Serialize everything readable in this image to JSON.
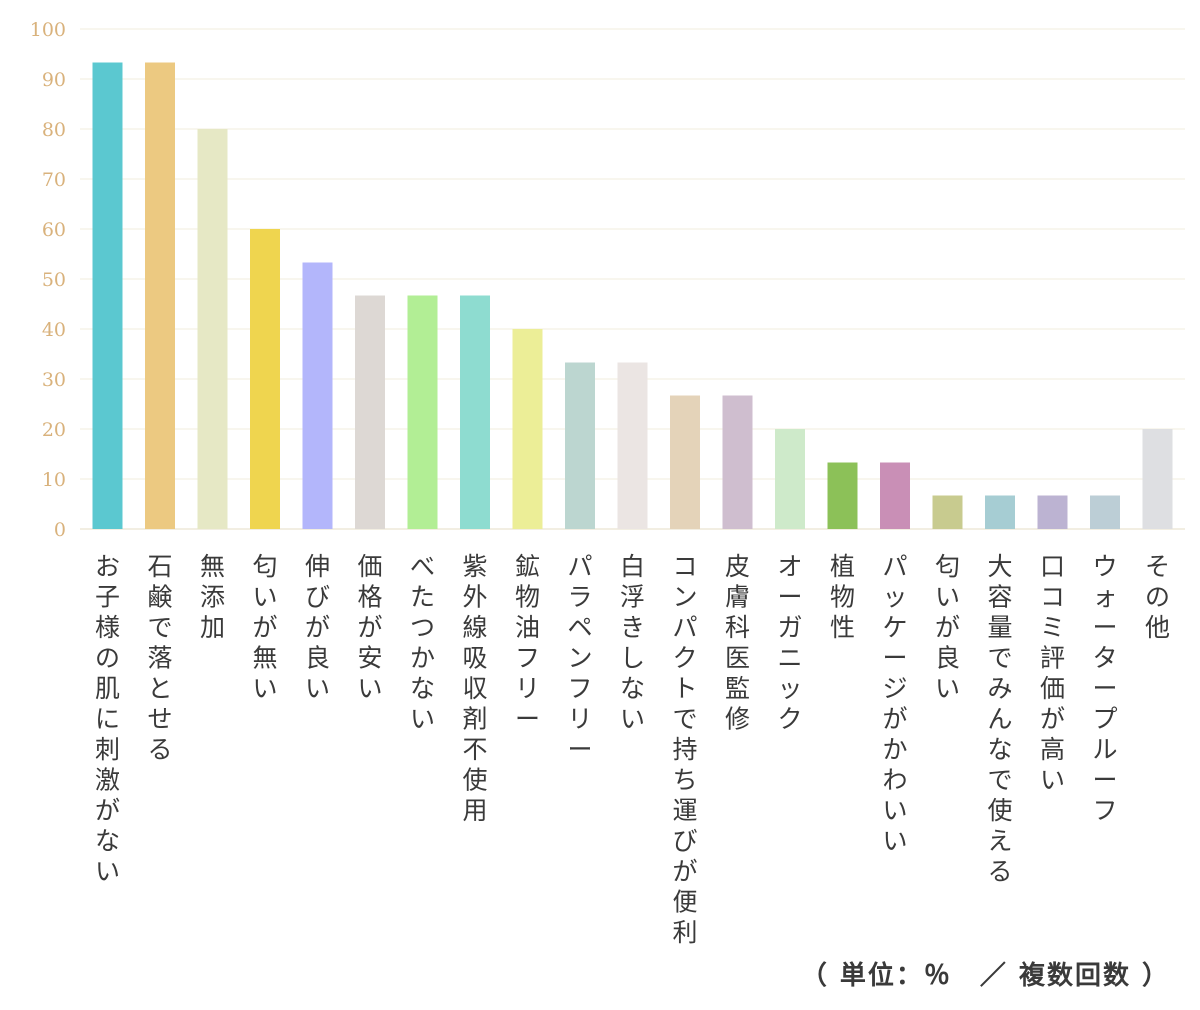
{
  "chart_data": {
    "type": "bar",
    "categories": [
      "お子様の肌に刺激がない",
      "石鹸で落とせる",
      "無添加",
      "匂いが無い",
      "伸びが良い",
      "価格が安い",
      "べたつかない",
      "紫外線吸収剤不使用",
      "鉱物油フリー",
      "パラペンフリー",
      "白浮きしない",
      "コンパクトで持ち運びが便利",
      "皮膚科医監修",
      "オーガニック",
      "植物性",
      "パッケージがかわいい",
      "匂いが良い",
      "大容量でみんなで使える",
      "口コミ評価が高い",
      "ウォータープルーフ",
      "その他"
    ],
    "values": [
      93.3,
      93.3,
      80,
      60,
      53.3,
      46.7,
      46.7,
      46.7,
      40,
      33.3,
      33.3,
      26.7,
      26.7,
      20,
      13.3,
      13.3,
      6.7,
      6.7,
      6.7,
      6.7,
      20
    ],
    "colors": [
      "#5bc8d0",
      "#ecc981",
      "#e6e8c5",
      "#efd54f",
      "#b3b6fb",
      "#ddd8d4",
      "#b2ee95",
      "#8edcd0",
      "#ecee97",
      "#bcd6d0",
      "#ebe5e3",
      "#e4d3b9",
      "#cfbecf",
      "#ceeaca",
      "#8cc158",
      "#c98fb6",
      "#c8cb8f",
      "#a6cdd3",
      "#bcb3d2",
      "#bcced6",
      "#dedfe2"
    ],
    "ylim": [
      0,
      100
    ],
    "yticks": [
      "0",
      "10",
      "20",
      "30",
      "40",
      "50",
      "60",
      "70",
      "80",
      "90",
      "100"
    ],
    "grid": true,
    "note": "（ 単位：％　／ 複数回数 ）"
  }
}
